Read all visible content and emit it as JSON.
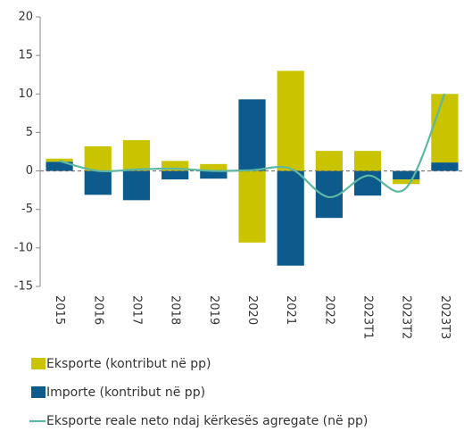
{
  "chart_data": {
    "type": "bar",
    "stacked": true,
    "categories": [
      "2015",
      "2016",
      "2017",
      "2018",
      "2019",
      "2020",
      "2021",
      "2022",
      "2023T1",
      "2023T2",
      "2023T3"
    ],
    "series": [
      {
        "name": "Eksporte (kontribut në pp)",
        "type": "bar",
        "color": "#c9c300",
        "values": [
          0.4,
          3.2,
          4.0,
          1.3,
          0.9,
          -9.3,
          13.0,
          2.6,
          2.6,
          -0.6,
          8.9
        ]
      },
      {
        "name": "Importe (kontribut në pp)",
        "type": "bar",
        "color": "#0d5a8c",
        "values": [
          1.2,
          -3.1,
          -3.8,
          -1.1,
          -1.0,
          9.3,
          -12.3,
          -6.1,
          -3.2,
          -1.1,
          1.1
        ]
      },
      {
        "name": "Eksporte reale neto ndaj kërkesës agregate (në pp)",
        "type": "line",
        "color": "#5cb8a2",
        "values": [
          1.3,
          0.0,
          0.2,
          0.3,
          0.0,
          0.1,
          0.3,
          -3.4,
          -0.6,
          -2.2,
          10.0
        ]
      }
    ],
    "ylim": [
      -15,
      20
    ],
    "yticks": [
      -15,
      -10,
      -5,
      0,
      5,
      10,
      15,
      20
    ]
  }
}
